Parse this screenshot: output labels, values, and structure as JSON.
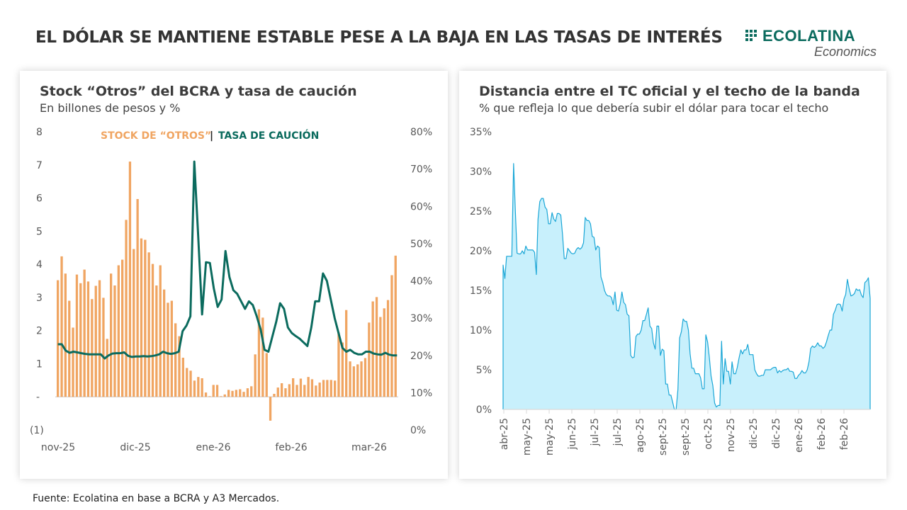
{
  "header": {
    "title": "EL DÓLAR SE MANTIENE ESTABLE PESE A LA BAJA EN LAS TASAS DE INTERÉS",
    "logo_name": "ECOLATINA",
    "logo_sub": "Economics",
    "logo_icon": "grid-dots-icon"
  },
  "footer": {
    "source": "Fuente: Ecolatina en base a BCRA y A3 Mercados."
  },
  "colors": {
    "bars": "#F0A562",
    "line": "#0B6B5E",
    "area_fill": "#C8F0FC",
    "area_line": "#1AA6D6",
    "brand": "#0B6B5E"
  },
  "chart_data": [
    {
      "type": "bar",
      "title": "Stock “Otros” del BCRA y tasa de caución",
      "subtitle": "En billones de pesos y %",
      "legend": {
        "placement": "top-center",
        "separator": "|",
        "entries": [
          {
            "name": "STOCK DE “OTROS”",
            "color": "#F0A562"
          },
          {
            "name": "TASA DE CAUCIÓN",
            "color": "#0B6B5E"
          }
        ]
      },
      "xlabel": "",
      "ylabel": "",
      "x_tick_labels": [
        "nov-25",
        "dic-25",
        "ene-26",
        "feb-26",
        "mar-26"
      ],
      "y_left": {
        "ylim": [
          -1,
          8
        ],
        "tick_labels": [
          "(1)",
          "-",
          "1",
          "2",
          "3",
          "4",
          "5",
          "6",
          "7",
          "8"
        ]
      },
      "y_right": {
        "ylim": [
          0,
          80
        ],
        "tick_labels": [
          "0%",
          "10%",
          "20%",
          "30%",
          "40%",
          "50%",
          "60%",
          "70%",
          "80%"
        ]
      },
      "grid": false,
      "series": [
        {
          "name": "STOCK DE “OTROS”",
          "type": "bar",
          "axis": "left",
          "values": [
            3.52,
            4.24,
            3.72,
            2.9,
            2.09,
            3.69,
            3.43,
            3.84,
            3.48,
            2.95,
            3.35,
            3.52,
            2.99,
            1.75,
            3.72,
            3.36,
            3.97,
            4.14,
            5.34,
            7.1,
            4.46,
            5.97,
            4.78,
            4.74,
            4.36,
            4.01,
            3.36,
            3.97,
            3.24,
            2.84,
            2.9,
            2.22,
            1.83,
            1.18,
            0.87,
            0.79,
            0.49,
            0.6,
            0.56,
            0.13,
            0.02,
            0.36,
            0.36,
            0.02,
            0.07,
            0.21,
            0.18,
            0.21,
            0.23,
            0.15,
            0.26,
            0.32,
            1.28,
            2.64,
            2.39,
            1.32,
            -0.72,
            0.09,
            0.28,
            0.41,
            0.26,
            0.38,
            0.56,
            0.36,
            0.55,
            0.36,
            0.6,
            0.53,
            0.34,
            0.43,
            0.51,
            0.51,
            0.51,
            0.49,
            1.94,
            1.64,
            2.62,
            1.07,
            0.92,
            0.98,
            1.07,
            1.17,
            2.24,
            2.88,
            3.01,
            2.41,
            2.67,
            2.92,
            3.67,
            4.26
          ]
        },
        {
          "name": "TASA DE CAUCIÓN",
          "type": "line",
          "axis": "right",
          "values": [
            23.0,
            23.0,
            21.3,
            20.7,
            21.0,
            20.8,
            20.6,
            20.4,
            20.3,
            20.3,
            20.3,
            20.3,
            19.2,
            20.0,
            20.5,
            20.6,
            20.6,
            20.8,
            19.9,
            19.6,
            19.7,
            19.7,
            19.8,
            19.7,
            19.8,
            20.0,
            20.3,
            21.0,
            20.6,
            20.4,
            20.6,
            21.0,
            26.5,
            28.0,
            30.5,
            72.0,
            52.0,
            31.0,
            45.0,
            44.8,
            38.0,
            33.0,
            35.0,
            48.0,
            41.0,
            37.5,
            36.5,
            34.5,
            32.5,
            34.5,
            33.5,
            30.5,
            27.0,
            21.5,
            21.0,
            25.0,
            29.0,
            34.0,
            32.5,
            27.5,
            26.0,
            25.2,
            24.5,
            23.5,
            22.5,
            27.5,
            34.5,
            34.5,
            42.0,
            40.0,
            35.0,
            30.0,
            26.0,
            22.0,
            21.0,
            21.5,
            20.7,
            20.3,
            20.3,
            21.0,
            21.0,
            20.5,
            20.3,
            20.2,
            20.7,
            20.2,
            20.0,
            20.0
          ]
        }
      ]
    },
    {
      "type": "area",
      "title": "Distancia entre el TC oficial y el techo de la banda",
      "subtitle": "% que refleja lo que debería subir el dólar para tocar el techo",
      "xlabel": "",
      "ylabel": "",
      "ylim": [
        0,
        35
      ],
      "y_tick_labels": [
        "0%",
        "5%",
        "10%",
        "15%",
        "20%",
        "25%",
        "30%",
        "35%"
      ],
      "x_tick_labels": [
        "abr-25",
        "may-25",
        "may-25",
        "jun-25",
        "jul-25",
        "jul-25",
        "ago-25",
        "sept-25",
        "sept-25",
        "oct-25",
        "nov-25",
        "dic-25",
        "dic-25",
        "ene-26",
        "feb-26",
        "feb-26"
      ],
      "grid": false,
      "legend": null,
      "series": [
        {
          "name": "Distancia al techo (%)",
          "values": [
            18.2,
            16.5,
            19.3,
            19.3,
            19.3,
            19.3,
            31.0,
            25.0,
            19.7,
            19.6,
            19.6,
            20.0,
            19.6,
            20.6,
            20.1,
            20.1,
            20.1,
            20.1,
            19.8,
            17.0,
            24.0,
            26.2,
            26.6,
            26.6,
            25.5,
            25.2,
            23.4,
            23.4,
            24.8,
            24.0,
            23.7,
            24.7,
            24.7,
            24.5,
            22.0,
            19.0,
            19.0,
            20.3,
            20.0,
            19.7,
            19.6,
            19.7,
            20.2,
            20.4,
            20.2,
            20.4,
            21.0,
            24.2,
            23.8,
            23.8,
            23.4,
            21.8,
            21.7,
            20.1,
            20.6,
            20.4,
            16.7,
            16.0,
            15.0,
            14.5,
            14.3,
            14.3,
            14.1,
            13.2,
            14.8,
            12.5,
            12.4,
            13.3,
            14.8,
            13.5,
            13.2,
            12.0,
            11.8,
            6.8,
            6.5,
            6.6,
            9.2,
            9.5,
            9.5,
            10.0,
            11.2,
            11.2,
            12.0,
            12.8,
            10.5,
            10.2,
            8.4,
            7.6,
            10.5,
            10.5,
            6.8,
            7.6,
            7.4,
            3.2,
            3.2,
            1.8,
            1.8,
            0.9,
            0.0,
            0.0,
            2.5,
            9.0,
            9.8,
            11.4,
            11.1,
            11.1,
            10.0,
            7.0,
            5.2,
            5.2,
            4.5,
            4.5,
            4.5,
            4.0,
            2.6,
            2.6,
            9.4,
            8.5,
            6.5,
            4.2,
            3.0,
            0.8,
            0.3,
            0.5,
            0.5,
            8.6,
            3.2,
            6.4,
            4.8,
            4.8,
            3.2,
            6.0,
            4.5,
            4.5,
            5.3,
            6.5,
            7.5,
            7.0,
            7.5,
            7.5,
            8.2,
            6.9,
            6.9,
            6.9,
            5.0,
            4.5,
            4.2,
            4.2,
            4.3,
            4.3,
            5.0,
            5.0,
            5.0,
            5.0,
            5.2,
            5.3,
            5.3,
            4.6,
            4.9,
            4.7,
            4.9,
            5.0,
            5.0,
            5.2,
            4.8,
            4.8,
            4.7,
            3.9,
            3.9,
            4.3,
            4.5,
            4.9,
            4.6,
            4.6,
            5.0,
            6.0,
            7.7,
            8.0,
            7.8,
            8.0,
            8.4,
            8.0,
            8.0,
            7.7,
            7.9,
            8.5,
            9.3,
            10.0,
            10.0,
            12.0,
            12.5,
            13.2,
            13.3,
            13.2,
            12.4,
            13.9,
            14.5,
            16.4,
            15.2,
            14.3,
            14.4,
            14.6,
            15.2,
            15.0,
            15.1,
            14.4,
            14.1,
            16.0,
            16.2,
            16.6,
            14.0
          ]
        }
      ]
    }
  ]
}
